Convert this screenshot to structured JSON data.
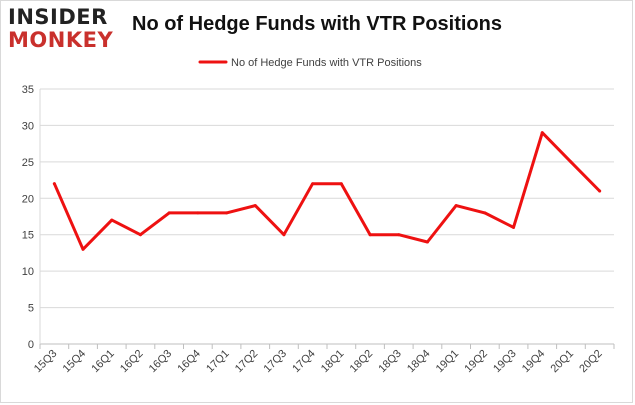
{
  "logo": {
    "line1": "INSIDER",
    "line2": "MONKEY"
  },
  "chart_data": {
    "type": "line",
    "title": "No of Hedge Funds with VTR Positions",
    "categories": [
      "15Q3",
      "15Q4",
      "16Q1",
      "16Q2",
      "16Q3",
      "16Q4",
      "17Q1",
      "17Q2",
      "17Q3",
      "17Q4",
      "18Q1",
      "18Q2",
      "18Q3",
      "18Q4",
      "19Q1",
      "19Q2",
      "19Q3",
      "19Q4",
      "20Q1",
      "20Q2"
    ],
    "series": [
      {
        "name": "No of Hedge Funds with VTR Positions",
        "values": [
          22,
          13,
          17,
          15,
          18,
          18,
          18,
          19,
          15,
          22,
          22,
          15,
          15,
          14,
          19,
          18,
          16,
          29,
          25,
          21
        ],
        "color": "#ee1111"
      }
    ],
    "yticks": [
      0,
      5,
      10,
      15,
      20,
      25,
      30,
      35
    ],
    "ylim": [
      0,
      35
    ],
    "grid": true,
    "legend_position": "top-center",
    "xlabel": "",
    "ylabel": ""
  }
}
